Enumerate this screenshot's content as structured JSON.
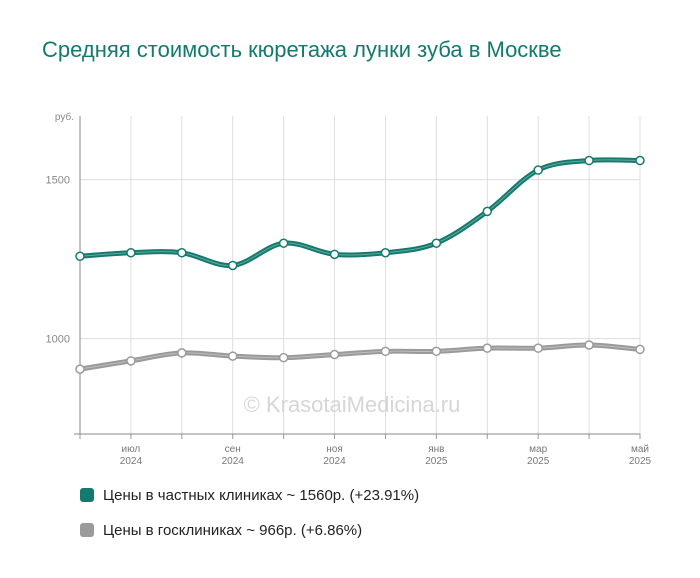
{
  "title": "Средняя стоимость кюретажа лунки зуба в Москве",
  "watermark": "© KrasotaiMedicina.ru",
  "colors": {
    "private": "#147a6e",
    "public": "#9a9a9a",
    "title": "#147a6e",
    "grid": "#dddddd"
  },
  "chart_data": {
    "type": "line",
    "ylabel": "руб.",
    "ylim": [
      700,
      1700
    ],
    "yticks": [
      1000,
      1500
    ],
    "x": [
      "2024-06",
      "2024-07",
      "2024-08",
      "2024-09",
      "2024-10",
      "2024-11",
      "2024-12",
      "2025-01",
      "2025-02",
      "2025-03",
      "2025-04",
      "2025-05"
    ],
    "xtick_labels": [
      {
        "month": "июл",
        "year": "2024"
      },
      {
        "month": "сен",
        "year": "2024"
      },
      {
        "month": "ноя",
        "year": "2024"
      },
      {
        "month": "янв",
        "year": "2025"
      },
      {
        "month": "мар",
        "year": "2025"
      },
      {
        "month": "май",
        "year": "2025"
      }
    ],
    "series": [
      {
        "name": "Цены в частных клиниках ~ 1560р. (+23.91%)",
        "values": [
          1259,
          1270,
          1270,
          1230,
          1300,
          1265,
          1270,
          1300,
          1400,
          1530,
          1560,
          1560
        ]
      },
      {
        "name": "Цены в госклиниках ~ 966р. (+6.86%)",
        "values": [
          904,
          930,
          955,
          945,
          940,
          950,
          960,
          960,
          970,
          970,
          980,
          966
        ]
      }
    ],
    "grid": true,
    "legend": "bottom"
  }
}
